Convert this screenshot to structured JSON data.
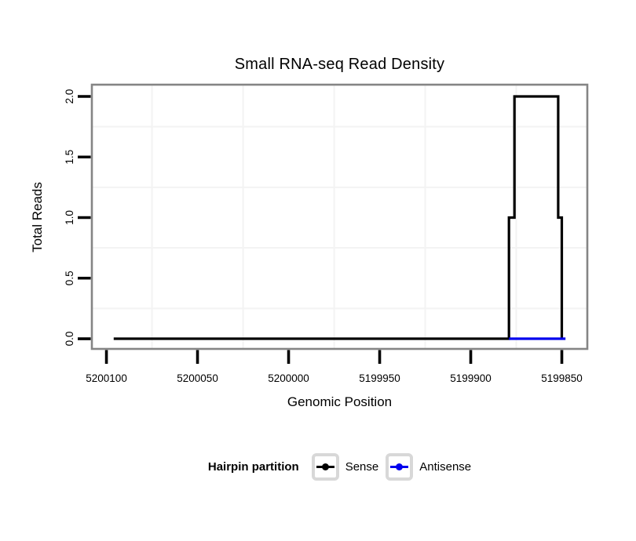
{
  "title": "Small RNA-seq Read Density",
  "axes": {
    "x": {
      "title": "Genomic Position",
      "tick_labels": [
        "5200100",
        "5200050",
        "5200000",
        "5199950",
        "5199900",
        "5199850"
      ]
    },
    "y": {
      "title": "Total Reads",
      "tick_labels": [
        "0.0",
        "0.5",
        "1.0",
        "1.5",
        "2.0"
      ]
    }
  },
  "legend": {
    "title": "Hairpin partition",
    "items": [
      {
        "label": "Sense",
        "color": "#000000",
        "icon": "line-with-point-key"
      },
      {
        "label": "Antisense",
        "color": "#0000EE",
        "icon": "line-with-point-key"
      }
    ]
  },
  "chart_data": {
    "type": "line",
    "subtype": "step",
    "title": "Small RNA-seq Read Density",
    "xlabel": "Genomic Position",
    "ylabel": "Total Reads",
    "x_axis_reversed": true,
    "xlim": [
      5200108,
      5199836
    ],
    "ylim": [
      -0.084,
      2.097
    ],
    "x_ticks": [
      5200100,
      5200050,
      5200000,
      5199950,
      5199900,
      5199850
    ],
    "y_ticks": [
      0,
      0.5,
      1,
      1.5,
      2
    ],
    "grid": "minor-only",
    "minor_grid_x": [
      5200075,
      5200025,
      5199975,
      5199925,
      5199875
    ],
    "minor_grid_y": [
      0.25,
      0.75,
      1.25,
      1.75
    ],
    "legend_title": "Hairpin partition",
    "legend_position": "bottom",
    "series": [
      {
        "name": "Sense",
        "color": "#000000",
        "points": [
          [
            5200096,
            0
          ],
          [
            5199879,
            0
          ],
          [
            5199879,
            1
          ],
          [
            5199876,
            1
          ],
          [
            5199876,
            2
          ],
          [
            5199852,
            2
          ],
          [
            5199852,
            1
          ],
          [
            5199850,
            1
          ],
          [
            5199850,
            0
          ]
        ]
      },
      {
        "name": "Antisense",
        "color": "#0000EE",
        "points": [
          [
            5199879,
            0
          ],
          [
            5199848,
            0
          ]
        ]
      }
    ],
    "colors": {
      "border": "#858585",
      "tick": "#000000",
      "grid": "#f3f3f3"
    }
  }
}
